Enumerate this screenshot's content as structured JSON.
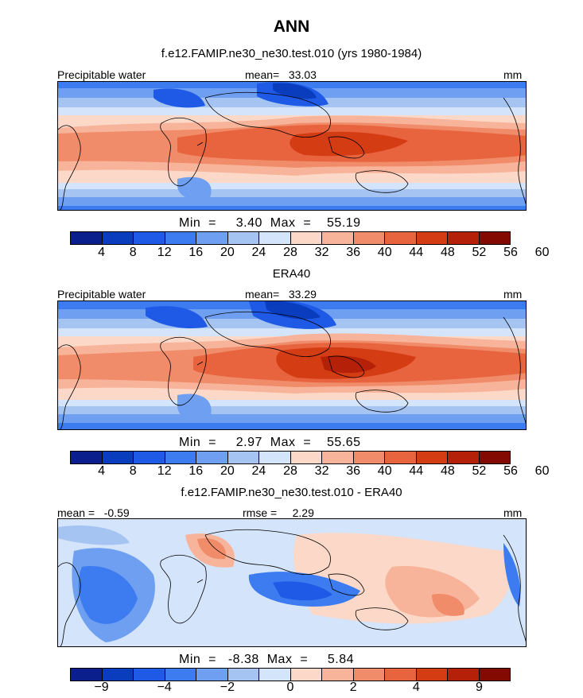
{
  "season": "ANN",
  "panels": [
    {
      "title": "f.e12.FAMIP.ne30_ne30.test.010 (yrs 1980-1984)",
      "left_label": "Precipitable water",
      "center_label": "mean=   33.03",
      "unit": "mm",
      "stats": "Min  =     3.40  Max  =    55.19",
      "colorbar": {
        "colors": [
          "#0a1e8c",
          "#0a3cbe",
          "#1e5ae6",
          "#3c7cf0",
          "#6e9ff0",
          "#a6c4f2",
          "#d4e4fa",
          "#fbd8c8",
          "#f8b49a",
          "#f08c6a",
          "#e8643e",
          "#d43c14",
          "#b42008",
          "#820a00"
        ],
        "ticks": [
          "4",
          "8",
          "12",
          "16",
          "20",
          "24",
          "28",
          "32",
          "36",
          "40",
          "44",
          "48",
          "52",
          "56",
          "60"
        ]
      }
    },
    {
      "title": "ERA40",
      "left_label": "Precipitable water",
      "center_label": "mean=   33.29",
      "unit": "mm",
      "stats": "Min  =     2.97  Max  =    55.65",
      "colorbar": {
        "colors": [
          "#0a1e8c",
          "#0a3cbe",
          "#1e5ae6",
          "#3c7cf0",
          "#6e9ff0",
          "#a6c4f2",
          "#d4e4fa",
          "#fbd8c8",
          "#f8b49a",
          "#f08c6a",
          "#e8643e",
          "#d43c14",
          "#b42008",
          "#820a00"
        ],
        "ticks": [
          "4",
          "8",
          "12",
          "16",
          "20",
          "24",
          "28",
          "32",
          "36",
          "40",
          "44",
          "48",
          "52",
          "56",
          "60"
        ]
      }
    },
    {
      "title": "f.e12.FAMIP.ne30_ne30.test.010 - ERA40",
      "left_label": "mean =   -0.59",
      "center_label": "rmse =     2.29",
      "unit": "mm",
      "stats": "Min  =   -8.38  Max  =     5.84",
      "colorbar": {
        "colors": [
          "#0a1e8c",
          "#0a3cbe",
          "#1e5ae6",
          "#3c7cf0",
          "#6e9ff0",
          "#a6c4f2",
          "#d4e4fa",
          "#fbd8c8",
          "#f8b49a",
          "#f08c6a",
          "#e8643e",
          "#d43c14",
          "#b42008",
          "#820a00"
        ],
        "ticks": [
          "−9",
          "",
          "−4",
          "",
          "−2",
          "",
          "0",
          "",
          "2",
          "",
          "4",
          "",
          "9",
          ""
        ]
      }
    }
  ],
  "chart_data": [
    {
      "type": "heatmap",
      "title": "f.e12.FAMIP.ne30_ne30.test.010 (yrs 1980-1984)",
      "variable": "Precipitable water",
      "unit": "mm",
      "mean": 33.03,
      "min": 3.4,
      "max": 55.19,
      "levels": [
        4,
        8,
        12,
        16,
        20,
        24,
        28,
        32,
        36,
        40,
        44,
        48,
        52,
        56,
        60
      ]
    },
    {
      "type": "heatmap",
      "title": "ERA40",
      "variable": "Precipitable water",
      "unit": "mm",
      "mean": 33.29,
      "min": 2.97,
      "max": 55.65,
      "levels": [
        4,
        8,
        12,
        16,
        20,
        24,
        28,
        32,
        36,
        40,
        44,
        48,
        52,
        56,
        60
      ]
    },
    {
      "type": "heatmap",
      "title": "f.e12.FAMIP.ne30_ne30.test.010 - ERA40",
      "unit": "mm",
      "mean": -0.59,
      "rmse": 2.29,
      "min": -8.38,
      "max": 5.84,
      "levels": [
        -9,
        -4,
        -2,
        0,
        2,
        4,
        9
      ]
    }
  ]
}
